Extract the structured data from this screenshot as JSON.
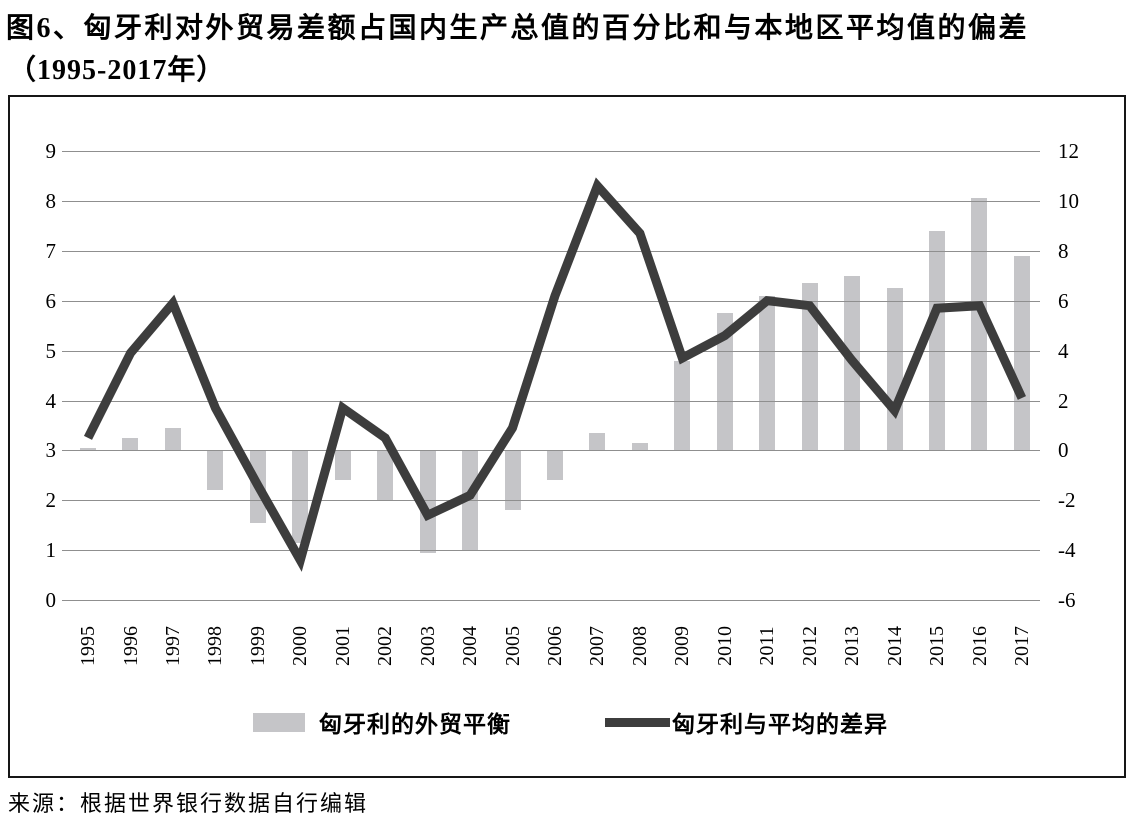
{
  "title": {
    "line1": "图6、匈牙利对外贸易差额占国内生产总值的百分比和与本地区平均值的偏差",
    "line2": "（1995-2017年）"
  },
  "source": "来源：根据世界银行数据自行编辑",
  "colors": {
    "bar": "#c5c5c8",
    "line": "#3d3d3d",
    "grid": "#8f8f8f",
    "frame": "#161616",
    "text": "#000000"
  },
  "chart_data": {
    "type": "bar+line combo",
    "categories": [
      "1995",
      "1996",
      "1997",
      "1998",
      "1999",
      "2000",
      "2001",
      "2002",
      "2003",
      "2004",
      "2005",
      "2006",
      "2007",
      "2008",
      "2009",
      "2010",
      "2011",
      "2012",
      "2013",
      "2014",
      "2015",
      "2016",
      "2017"
    ],
    "series": [
      {
        "name": "匈牙利的外贸平衡",
        "type": "bar",
        "axis": "right",
        "color": "#c5c5c8",
        "values": [
          0.1,
          0.5,
          0.9,
          -1.6,
          -2.9,
          -3.7,
          -1.2,
          -2.0,
          -4.1,
          -4.0,
          -2.4,
          -1.2,
          0.7,
          0.3,
          3.6,
          5.5,
          6.2,
          6.7,
          7.0,
          6.5,
          8.8,
          10.1,
          7.8
        ]
      },
      {
        "name": "匈牙利与平均的差异",
        "type": "line",
        "axis": "right",
        "color": "#3d3d3d",
        "values": [
          0.5,
          3.9,
          5.9,
          1.7,
          -1.4,
          -4.4,
          1.7,
          0.5,
          -2.6,
          -1.8,
          0.9,
          6.2,
          10.6,
          8.7,
          3.7,
          4.6,
          6.0,
          5.8,
          3.6,
          1.6,
          5.7,
          5.8,
          2.1
        ]
      }
    ],
    "left_axis": {
      "ticks": [
        9,
        8,
        7,
        6,
        5,
        4,
        3,
        2,
        1,
        0
      ],
      "min": 0,
      "max": 9
    },
    "right_axis": {
      "ticks": [
        12,
        10,
        8,
        6,
        4,
        2,
        0,
        -2,
        -4,
        -6
      ],
      "min": -6,
      "max": 12,
      "bar_zero_at_left_value": 3
    },
    "grid": true,
    "legend_position": "bottom"
  }
}
